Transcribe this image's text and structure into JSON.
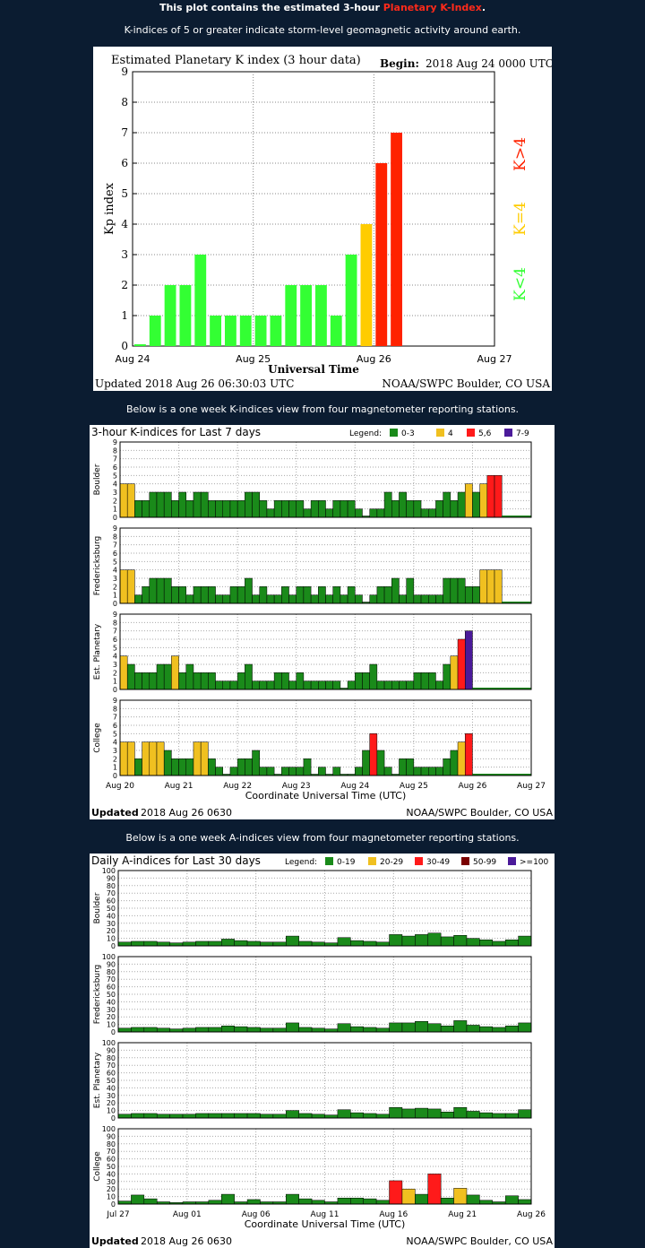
{
  "header": {
    "intro_prefix": "This plot contains the estimated 3-hour ",
    "intro_highlight": "Planetary K-Index",
    "intro_suffix": ".",
    "storm_note": "K-indices of 5 or greater indicate storm-level geomagnetic activity around earth.",
    "kweek_intro": "Below is a one week K-indices view from four magnetometer reporting stations.",
    "aindex_intro": "Below is a one week A-indices view from four magnetometer reporting stations."
  },
  "colors": {
    "green": "#33ff33",
    "gold": "#ffcc00",
    "red": "#ff2200",
    "dgreen": "#1a8a1a",
    "ygold": "#f0c020",
    "bred": "#ff1a1a",
    "maroon": "#7a0000",
    "purple": "#4b1a9a"
  },
  "chart_data": [
    {
      "type": "bar",
      "title": "Estimated Planetary K index (3 hour data)",
      "begin_label": "Begin:",
      "begin_value": "2018 Aug 24 0000 UTC",
      "ylabel": "Kp index",
      "xlabel": "Universal Time",
      "ylim": [
        0,
        9
      ],
      "yticks": [
        "0",
        "1",
        "2",
        "3",
        "4",
        "5",
        "6",
        "7",
        "8",
        "9"
      ],
      "xticks": [
        "Aug 24",
        "Aug 25",
        "Aug 26",
        "Aug 27"
      ],
      "values": [
        0,
        1,
        2,
        2,
        3,
        1,
        1,
        1,
        1,
        1,
        2,
        2,
        2,
        1,
        3,
        4,
        6,
        7
      ],
      "legend": [
        "K<4",
        "K=4",
        "K>4"
      ],
      "updated": "Updated 2018 Aug 26 06:30:03 UTC",
      "credit": "NOAA/SWPC Boulder, CO USA"
    },
    {
      "type": "bar",
      "title": "3-hour K-indices for Last 7 days",
      "legend_label": "Legend:",
      "legend": [
        "0-3",
        "4",
        "5,6",
        "7-9"
      ],
      "ylim": [
        0,
        9
      ],
      "yticks": [
        "0",
        "1",
        "2",
        "3",
        "4",
        "5",
        "6",
        "7",
        "8",
        "9"
      ],
      "xticks": [
        "Aug 20",
        "Aug 21",
        "Aug 22",
        "Aug 23",
        "Aug 24",
        "Aug 25",
        "Aug 26",
        "Aug 27"
      ],
      "xlabel": "Coordinate Universal Time (UTC)",
      "updated_label": "Updated",
      "updated_value": "2018 Aug 26 0630",
      "credit": "NOAA/SWPC Boulder, CO USA",
      "series": [
        {
          "name": "Boulder",
          "values": [
            4,
            4,
            2,
            2,
            3,
            3,
            3,
            2,
            3,
            2,
            3,
            3,
            2,
            2,
            2,
            2,
            2,
            3,
            3,
            2,
            1,
            2,
            2,
            2,
            2,
            1,
            2,
            2,
            1,
            2,
            2,
            2,
            1,
            0,
            1,
            1,
            3,
            2,
            3,
            2,
            2,
            1,
            1,
            2,
            3,
            2,
            3,
            4,
            3,
            4,
            5,
            5
          ]
        },
        {
          "name": "Fredericksburg",
          "values": [
            4,
            4,
            1,
            2,
            3,
            3,
            3,
            2,
            2,
            1,
            2,
            2,
            2,
            1,
            1,
            2,
            2,
            3,
            1,
            2,
            1,
            1,
            2,
            1,
            2,
            2,
            1,
            2,
            1,
            2,
            1,
            2,
            1,
            0,
            1,
            2,
            2,
            3,
            1,
            3,
            1,
            1,
            1,
            1,
            3,
            3,
            3,
            2,
            2,
            4,
            4,
            4
          ]
        },
        {
          "name": "Est. Planetary",
          "values": [
            4,
            3,
            2,
            2,
            2,
            3,
            3,
            4,
            2,
            3,
            2,
            2,
            2,
            1,
            1,
            1,
            2,
            3,
            1,
            1,
            1,
            2,
            2,
            1,
            2,
            1,
            1,
            1,
            1,
            1,
            0,
            1,
            2,
            2,
            3,
            1,
            1,
            1,
            1,
            1,
            2,
            2,
            2,
            1,
            3,
            4,
            6,
            7
          ]
        },
        {
          "name": "College",
          "values": [
            4,
            4,
            2,
            4,
            4,
            4,
            3,
            2,
            2,
            2,
            4,
            4,
            2,
            1,
            0,
            1,
            2,
            2,
            3,
            1,
            1,
            0,
            1,
            1,
            1,
            2,
            0,
            1,
            0,
            1,
            0,
            0,
            1,
            3,
            5,
            3,
            1,
            0,
            2,
            2,
            1,
            1,
            1,
            1,
            2,
            3,
            4,
            5
          ]
        }
      ]
    },
    {
      "type": "bar",
      "title": "Daily A-indices for Last 30 days",
      "legend_label": "Legend:",
      "legend": [
        "0-19",
        "20-29",
        "30-49",
        "50-99",
        ">=100"
      ],
      "ylim": [
        0,
        100
      ],
      "yticks": [
        "0",
        "10",
        "20",
        "30",
        "40",
        "50",
        "60",
        "70",
        "80",
        "90",
        "100"
      ],
      "xticks": [
        "Jul 27",
        "Aug 01",
        "Aug 06",
        "Aug 11",
        "Aug 16",
        "Aug 21",
        "Aug 26"
      ],
      "xlabel": "Coordinate Universal Time (UTC)",
      "updated_label": "Updated",
      "updated_value": "2018 Aug 26 0630",
      "credit": "NOAA/SWPC Boulder, CO USA",
      "series": [
        {
          "name": "Boulder",
          "values": [
            5,
            6,
            6,
            5,
            4,
            5,
            6,
            6,
            9,
            7,
            6,
            5,
            5,
            13,
            6,
            5,
            4,
            11,
            7,
            6,
            5,
            15,
            13,
            15,
            17,
            12,
            14,
            10,
            8,
            6,
            8,
            13
          ]
        },
        {
          "name": "Fredericksburg",
          "values": [
            5,
            6,
            6,
            5,
            4,
            5,
            6,
            6,
            8,
            7,
            6,
            5,
            5,
            12,
            6,
            5,
            4,
            11,
            7,
            6,
            5,
            12,
            12,
            14,
            11,
            8,
            15,
            9,
            7,
            6,
            8,
            12
          ]
        },
        {
          "name": "Est. Planetary",
          "values": [
            5,
            6,
            6,
            5,
            5,
            5,
            6,
            6,
            6,
            6,
            6,
            5,
            5,
            10,
            6,
            5,
            4,
            11,
            7,
            6,
            5,
            14,
            12,
            13,
            12,
            8,
            14,
            9,
            7,
            6,
            6,
            11
          ]
        },
        {
          "name": "College",
          "values": [
            4,
            12,
            7,
            3,
            2,
            3,
            3,
            5,
            13,
            3,
            6,
            3,
            3,
            13,
            7,
            5,
            3,
            8,
            8,
            7,
            5,
            31,
            20,
            13,
            40,
            8,
            21,
            12,
            5,
            3,
            11,
            6
          ]
        }
      ]
    }
  ]
}
